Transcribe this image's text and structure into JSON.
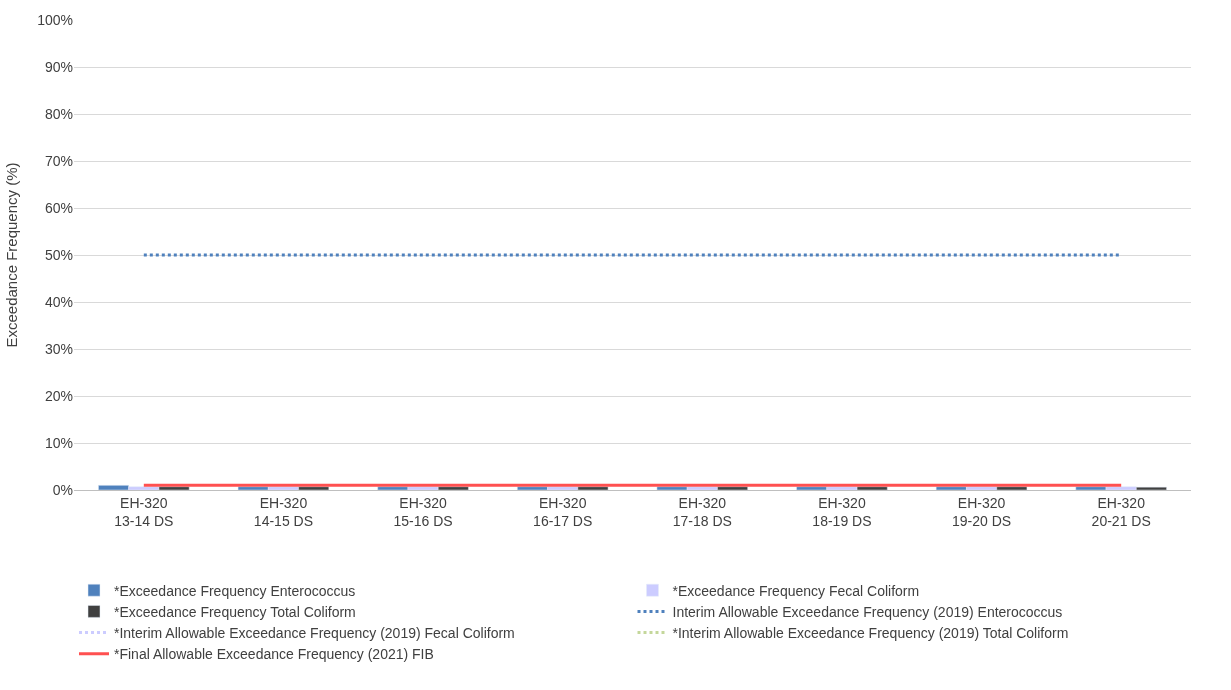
{
  "chart_data": {
    "type": "bar",
    "ylabel": "Exceedance Frequency (%)",
    "categories": [
      "EH-320\n13-14 DS",
      "EH-320\n14-15 DS",
      "EH-320\n15-16 DS",
      "EH-320\n16-17 DS",
      "EH-320\n17-18 DS",
      "EH-320\n18-19 DS",
      "EH-320\n19-20 DS",
      "EH-320\n20-21 DS"
    ],
    "series": [
      {
        "name": "*Exceedance Frequency Enterococcus",
        "color": "#4f81bd",
        "values": [
          1,
          0.7,
          0.7,
          0.7,
          0.7,
          0.7,
          0.7,
          0.7
        ]
      },
      {
        "name": "*Exceedance Frequency Fecal Coliform",
        "color": "#ccccff",
        "values": [
          0.7,
          0.7,
          0.7,
          0.7,
          0.7,
          0.7,
          0.7,
          0.7
        ]
      },
      {
        "name": "*Exceedance Frequency Total Coliform",
        "color": "#404040",
        "values": [
          0.7,
          0.7,
          0.7,
          0.7,
          0.7,
          0.7,
          0.7,
          0.6
        ]
      },
      {
        "name": "Interim Allowable Exceedance Frequency (2019) Enterococcus",
        "type": "line",
        "line_style": "dotted",
        "color": "#4f81bd",
        "values": [
          50,
          50,
          50,
          50,
          50,
          50,
          50,
          50
        ]
      },
      {
        "name": "*Interim Allowable Exceedance Frequency (2019) Fecal Coliform",
        "type": "line",
        "line_style": "dotted",
        "color": "#ccccff",
        "values": [
          null,
          null,
          null,
          null,
          null,
          null,
          null,
          null
        ]
      },
      {
        "name": "*Interim Allowable Exceedance Frequency (2019) Total Coliform",
        "type": "line",
        "line_style": "dotted",
        "color": "#c4d79b",
        "values": [
          null,
          null,
          null,
          null,
          null,
          null,
          null,
          null
        ]
      },
      {
        "name": "*Final Allowable Exceedance Frequency (2021) FIB",
        "type": "line",
        "line_style": "solid",
        "color": "#ff5050",
        "values": [
          1,
          1,
          1,
          1,
          1,
          1,
          1,
          1
        ]
      }
    ],
    "ylim": [
      0,
      100
    ],
    "yticks": [
      {
        "value": 0,
        "label": "0%"
      },
      {
        "value": 10,
        "label": "10%"
      },
      {
        "value": 20,
        "label": "20%"
      },
      {
        "value": 30,
        "label": "30%"
      },
      {
        "value": 40,
        "label": "40%"
      },
      {
        "value": 50,
        "label": "50%"
      },
      {
        "value": 60,
        "label": "60%"
      },
      {
        "value": 70,
        "label": "70%"
      },
      {
        "value": 80,
        "label": "80%"
      },
      {
        "value": 90,
        "label": "90%"
      },
      {
        "value": 100,
        "label": "100%"
      }
    ],
    "grid": "y",
    "legend": "bottom"
  }
}
